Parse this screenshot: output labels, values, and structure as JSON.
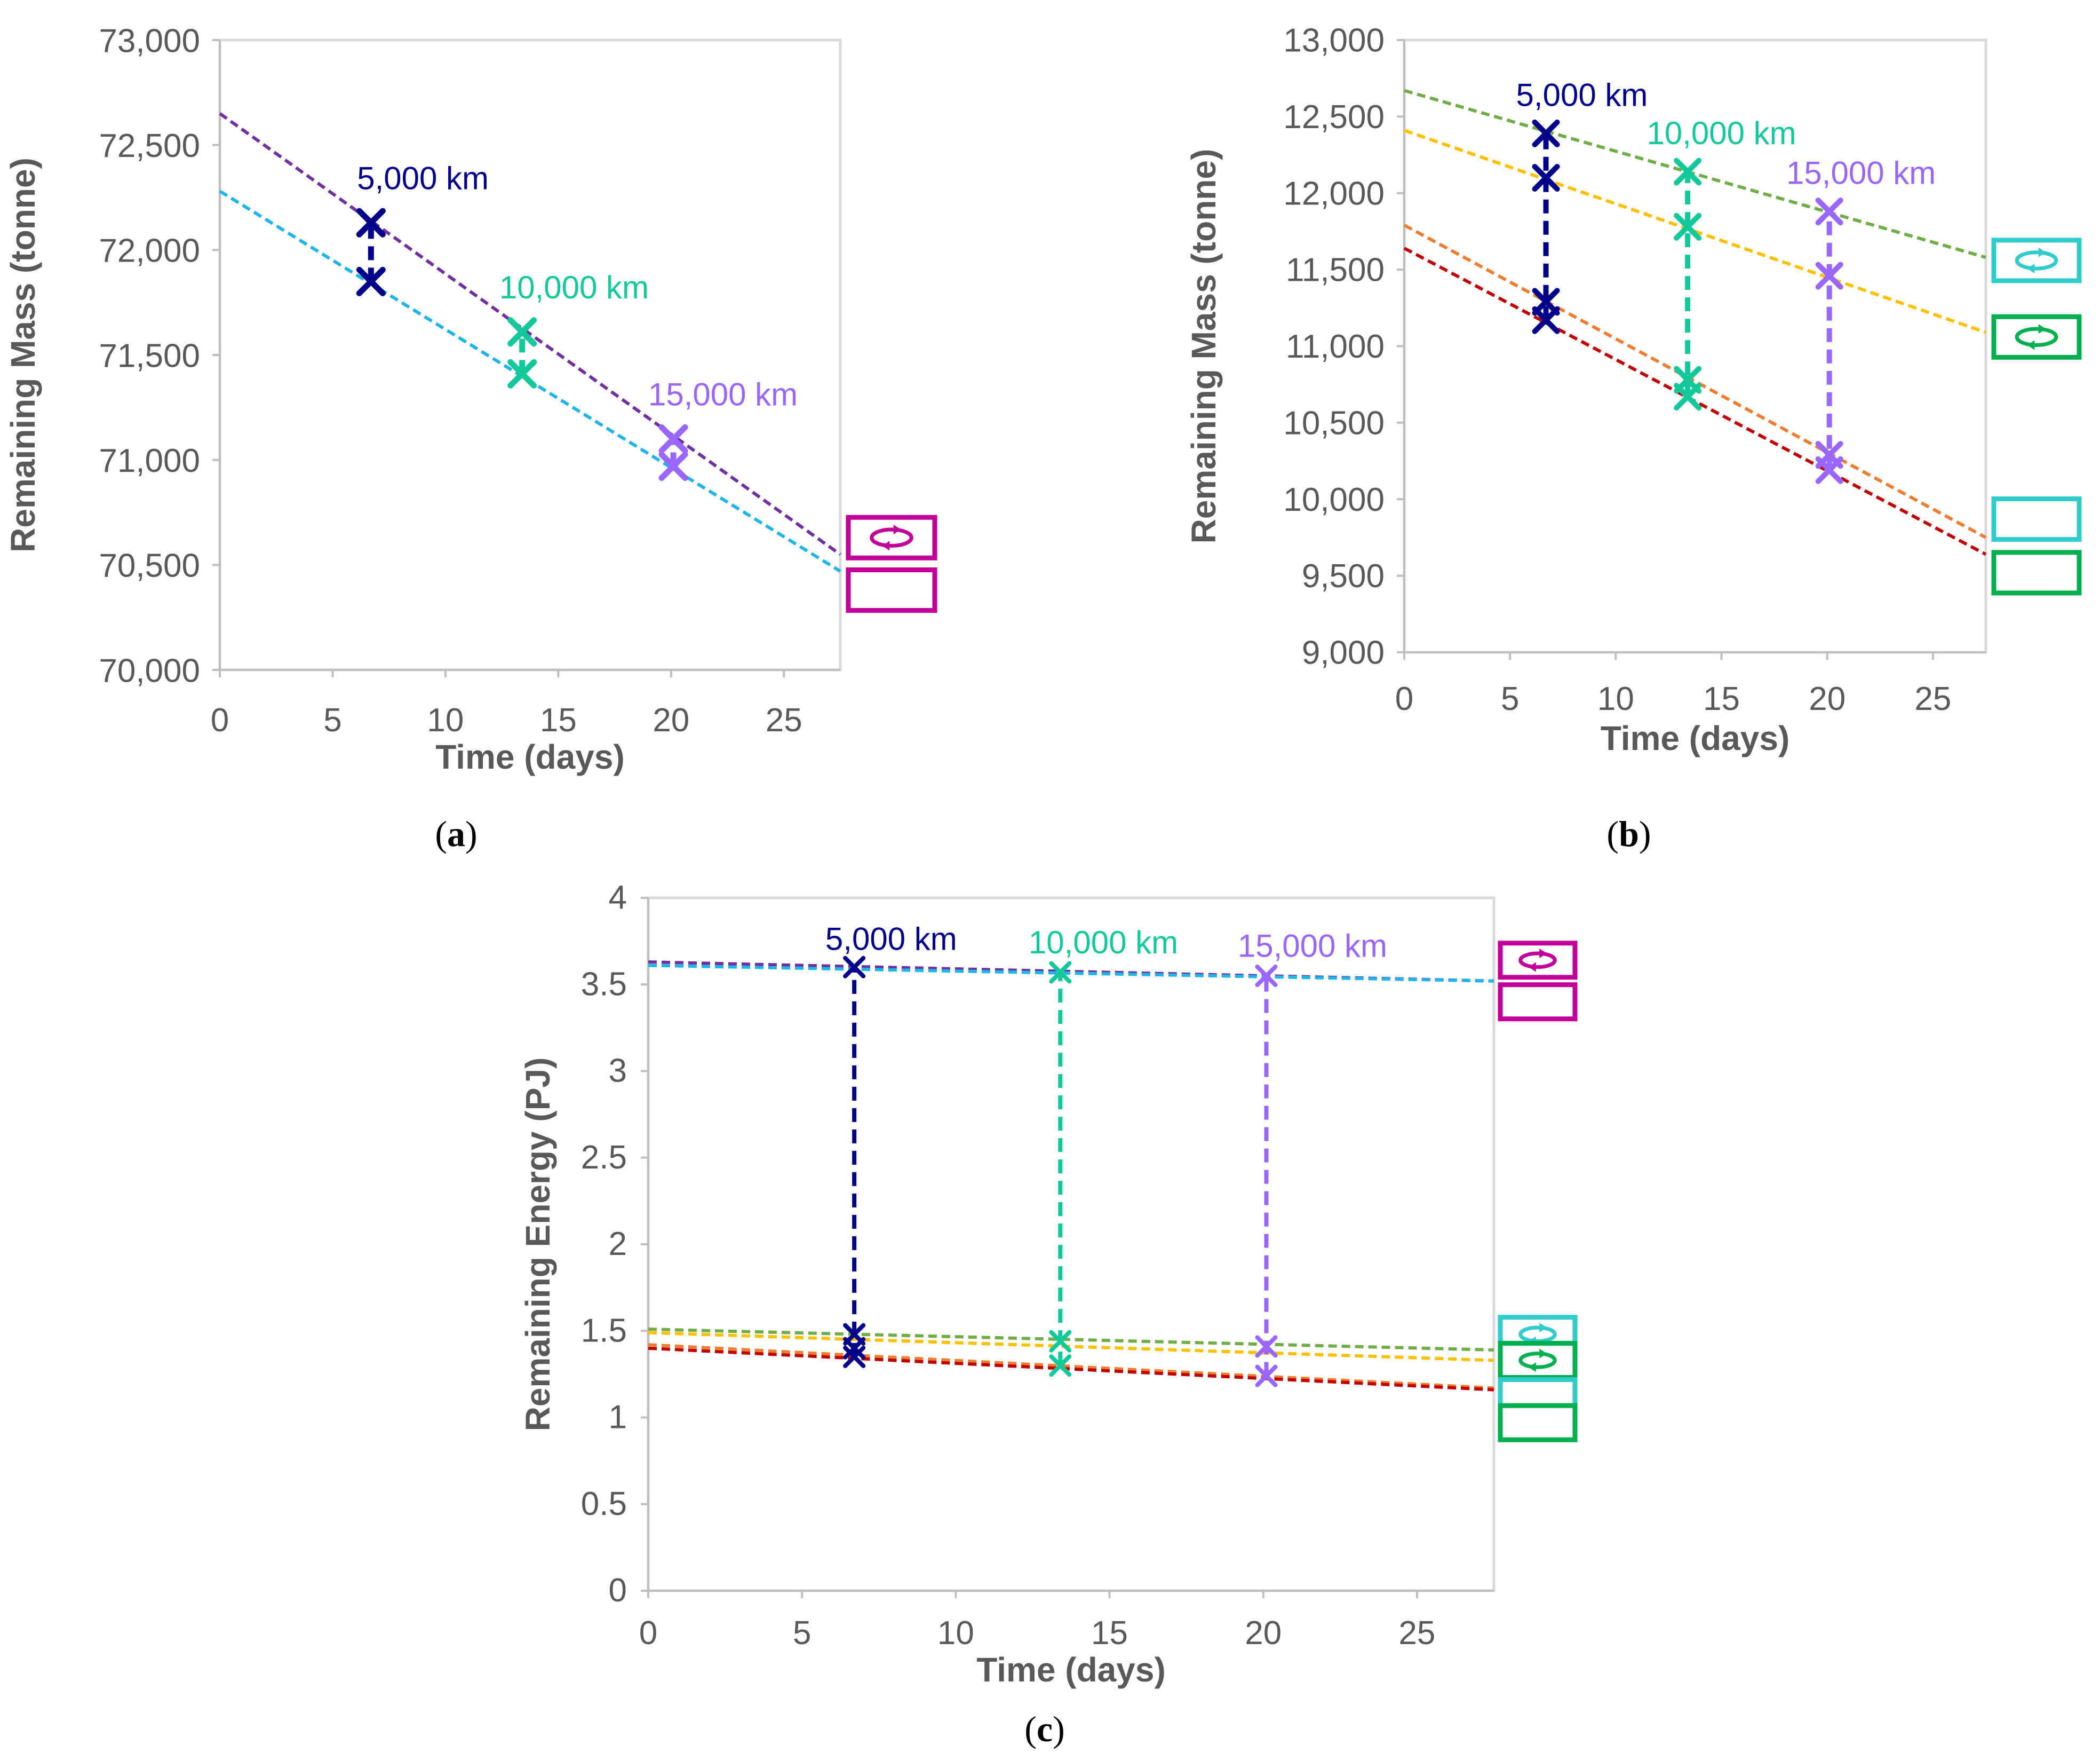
{
  "panel_labels": [
    "a",
    "b",
    "c"
  ],
  "chart_data": [
    {
      "panel": "a",
      "type": "line",
      "xlabel": "Time (days)",
      "ylabel": "Remaining Mass (tonne)",
      "xlim": [
        0,
        27.5
      ],
      "ylim": [
        70000,
        73000
      ],
      "xticks": [
        0,
        5,
        10,
        15,
        20,
        25
      ],
      "yticks": [
        70000,
        70500,
        71000,
        71500,
        72000,
        72500,
        73000
      ],
      "ytick_labels": [
        "70,000",
        "70,500",
        "71,000",
        "71,500",
        "72,000",
        "72,500",
        "73,000"
      ],
      "grid": false,
      "series": [
        {
          "color": "#7030a0",
          "dashed": true,
          "x": [
            0,
            27.5
          ],
          "y": [
            72650,
            70550
          ]
        },
        {
          "color": "#1fb5e8",
          "dashed": true,
          "x": [
            0,
            27.5
          ],
          "y": [
            72280,
            70470
          ]
        }
      ],
      "markers": [
        {
          "x": 6.7,
          "y": 72130,
          "color": "#00008b"
        },
        {
          "x": 6.7,
          "y": 71850,
          "color": "#00008b"
        },
        {
          "x": 13.4,
          "y": 71610,
          "color": "#13c99a"
        },
        {
          "x": 13.4,
          "y": 71410,
          "color": "#13c99a"
        },
        {
          "x": 20.1,
          "y": 71100,
          "color": "#9966ff"
        },
        {
          "x": 20.1,
          "y": 70970,
          "color": "#9966ff"
        }
      ],
      "connectors": [
        {
          "x": 6.7,
          "y": [
            71850,
            72130
          ],
          "color": "#00008b"
        },
        {
          "x": 13.4,
          "y": [
            71410,
            71610
          ],
          "color": "#13c99a"
        },
        {
          "x": 20.1,
          "y": [
            70970,
            71100
          ],
          "color": "#9966ff"
        }
      ],
      "annotations": [
        {
          "text": "5,000 km",
          "x": 9.0,
          "y": 72290,
          "color": "#00008b"
        },
        {
          "text": "10,000 km",
          "x": 15.7,
          "y": 71770,
          "color": "#13c99a"
        },
        {
          "text": "15,000 km",
          "x": 22.3,
          "y": 71260,
          "color": "#9966ff"
        }
      ],
      "legend_icons": [
        {
          "color": "#c00099",
          "arrows": true,
          "y": 70630
        },
        {
          "color": "#c00099",
          "arrows": false,
          "y": 70380
        }
      ]
    },
    {
      "panel": "b",
      "type": "line",
      "xlabel": "Time (days)",
      "ylabel": "Remaining Mass (tonne)",
      "xlim": [
        0,
        27.5
      ],
      "ylim": [
        9000,
        13000
      ],
      "xticks": [
        0,
        5,
        10,
        15,
        20,
        25
      ],
      "yticks": [
        9000,
        9500,
        10000,
        10500,
        11000,
        11500,
        12000,
        12500,
        13000
      ],
      "ytick_labels": [
        "9,000",
        "9,500",
        "10,000",
        "10,500",
        "11,000",
        "11,500",
        "12,000",
        "12,500",
        "13,000"
      ],
      "grid": false,
      "series": [
        {
          "color": "#70ad47",
          "dashed": true,
          "x": [
            0,
            27.5
          ],
          "y": [
            12670,
            11580
          ]
        },
        {
          "color": "#ffc000",
          "dashed": true,
          "x": [
            0,
            27.5
          ],
          "y": [
            12410,
            11090
          ]
        },
        {
          "color": "#ed7d31",
          "dashed": true,
          "x": [
            0,
            27.5
          ],
          "y": [
            11790,
            9750
          ]
        },
        {
          "color": "#c00000",
          "dashed": true,
          "x": [
            0,
            27.5
          ],
          "y": [
            11640,
            9640
          ]
        }
      ],
      "markers": [
        {
          "x": 6.7,
          "y": 12390,
          "color": "#00008b"
        },
        {
          "x": 6.7,
          "y": 12100,
          "color": "#00008b"
        },
        {
          "x": 6.7,
          "y": 11290,
          "color": "#00008b"
        },
        {
          "x": 6.7,
          "y": 11170,
          "color": "#00008b"
        },
        {
          "x": 13.4,
          "y": 12140,
          "color": "#13c99a"
        },
        {
          "x": 13.4,
          "y": 11780,
          "color": "#13c99a"
        },
        {
          "x": 13.4,
          "y": 10780,
          "color": "#13c99a"
        },
        {
          "x": 13.4,
          "y": 10670,
          "color": "#13c99a"
        },
        {
          "x": 20.1,
          "y": 11880,
          "color": "#9966ff"
        },
        {
          "x": 20.1,
          "y": 11460,
          "color": "#9966ff"
        },
        {
          "x": 20.1,
          "y": 10290,
          "color": "#9966ff"
        },
        {
          "x": 20.1,
          "y": 10190,
          "color": "#9966ff"
        }
      ],
      "connectors": [
        {
          "x": 6.7,
          "y": [
            11170,
            12390
          ],
          "color": "#00008b"
        },
        {
          "x": 13.4,
          "y": [
            10670,
            12140
          ],
          "color": "#13c99a"
        },
        {
          "x": 20.1,
          "y": [
            10190,
            11880
          ],
          "color": "#9966ff"
        }
      ],
      "annotations": [
        {
          "text": "5,000 km",
          "x": 8.4,
          "y": 12570,
          "color": "#00008b"
        },
        {
          "text": "10,000 km",
          "x": 15.0,
          "y": 12320,
          "color": "#13c99a"
        },
        {
          "text": "15,000 km",
          "x": 21.6,
          "y": 12060,
          "color": "#9966ff"
        }
      ],
      "legend_icons": [
        {
          "color": "#33cccc",
          "arrows": true,
          "y": 11560
        },
        {
          "color": "#00b050",
          "arrows": true,
          "y": 11060
        },
        {
          "color": "#33cccc",
          "arrows": false,
          "y": 9870
        },
        {
          "color": "#00b050",
          "arrows": false,
          "y": 9520
        }
      ]
    },
    {
      "panel": "c",
      "type": "line",
      "xlabel": "Time (days)",
      "ylabel": "Remaining Energy (PJ)",
      "xlim": [
        0,
        27.5
      ],
      "ylim": [
        0,
        4
      ],
      "xticks": [
        0,
        5,
        10,
        15,
        20,
        25
      ],
      "yticks": [
        0,
        0.5,
        1,
        1.5,
        2,
        2.5,
        3,
        3.5,
        4
      ],
      "ytick_labels": [
        "0",
        "0.5",
        "1",
        "1.5",
        "2",
        "2.5",
        "3",
        "3.5",
        "4"
      ],
      "grid": false,
      "series": [
        {
          "color": "#7030a0",
          "dashed": true,
          "x": [
            0,
            27.5
          ],
          "y": [
            3.63,
            3.52
          ]
        },
        {
          "color": "#1fb5e8",
          "dashed": true,
          "x": [
            0,
            27.5
          ],
          "y": [
            3.61,
            3.52
          ]
        },
        {
          "color": "#70ad47",
          "dashed": true,
          "x": [
            0,
            27.5
          ],
          "y": [
            1.51,
            1.39
          ]
        },
        {
          "color": "#ffc000",
          "dashed": true,
          "x": [
            0,
            27.5
          ],
          "y": [
            1.49,
            1.33
          ]
        },
        {
          "color": "#ed7d31",
          "dashed": true,
          "x": [
            0,
            27.5
          ],
          "y": [
            1.42,
            1.17
          ]
        },
        {
          "color": "#c00000",
          "dashed": true,
          "x": [
            0,
            27.5
          ],
          "y": [
            1.4,
            1.16
          ]
        }
      ],
      "markers": [
        {
          "x": 6.7,
          "y": 3.6,
          "color": "#00008b"
        },
        {
          "x": 6.7,
          "y": 1.48,
          "color": "#00008b"
        },
        {
          "x": 6.7,
          "y": 1.4,
          "color": "#00008b"
        },
        {
          "x": 6.7,
          "y": 1.35,
          "color": "#00008b"
        },
        {
          "x": 13.4,
          "y": 3.57,
          "color": "#13c99a"
        },
        {
          "x": 13.4,
          "y": 1.44,
          "color": "#13c99a"
        },
        {
          "x": 13.4,
          "y": 1.3,
          "color": "#13c99a"
        },
        {
          "x": 20.1,
          "y": 3.55,
          "color": "#9966ff"
        },
        {
          "x": 20.1,
          "y": 1.41,
          "color": "#9966ff"
        },
        {
          "x": 20.1,
          "y": 1.24,
          "color": "#9966ff"
        }
      ],
      "connectors": [
        {
          "x": 6.7,
          "y": [
            1.35,
            3.6
          ],
          "color": "#00008b"
        },
        {
          "x": 13.4,
          "y": [
            1.3,
            3.57
          ],
          "color": "#13c99a"
        },
        {
          "x": 20.1,
          "y": [
            1.24,
            3.55
          ],
          "color": "#9966ff"
        }
      ],
      "annotations": [
        {
          "text": "5,000 km",
          "x": 7.9,
          "y": 3.7,
          "color": "#00008b"
        },
        {
          "text": "10,000 km",
          "x": 14.8,
          "y": 3.68,
          "color": "#13c99a"
        },
        {
          "text": "15,000 km",
          "x": 21.6,
          "y": 3.66,
          "color": "#9966ff"
        }
      ],
      "legend_icons": [
        {
          "color": "#c00099",
          "arrows": true,
          "y": 3.64
        },
        {
          "color": "#c00099",
          "arrows": false,
          "y": 3.4
        },
        {
          "color": "#33cccc",
          "arrows": true,
          "y": 1.48
        },
        {
          "color": "#00b050",
          "arrows": true,
          "y": 1.33
        },
        {
          "color": "#33cccc",
          "arrows": false,
          "y": 1.12
        },
        {
          "color": "#00b050",
          "arrows": false,
          "y": 0.97
        }
      ]
    }
  ]
}
